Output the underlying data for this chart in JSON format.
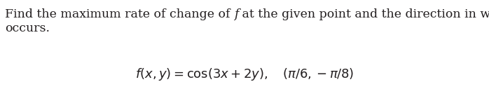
{
  "line1_pre": "Find the maximum rate of change of ",
  "line1_italic": "f",
  "line1_post": " at the given point and the direction in which it",
  "line2": "occurs.",
  "formula": "$f(x, y) = \\cos(3x + 2y), \\quad (\\pi/6, -\\pi/8)$",
  "text_color": "#231f20",
  "background_color": "#ffffff",
  "fontsize_body": 12.5,
  "fontsize_formula": 13.0,
  "fig_width": 6.98,
  "fig_height": 1.27,
  "dpi": 100
}
